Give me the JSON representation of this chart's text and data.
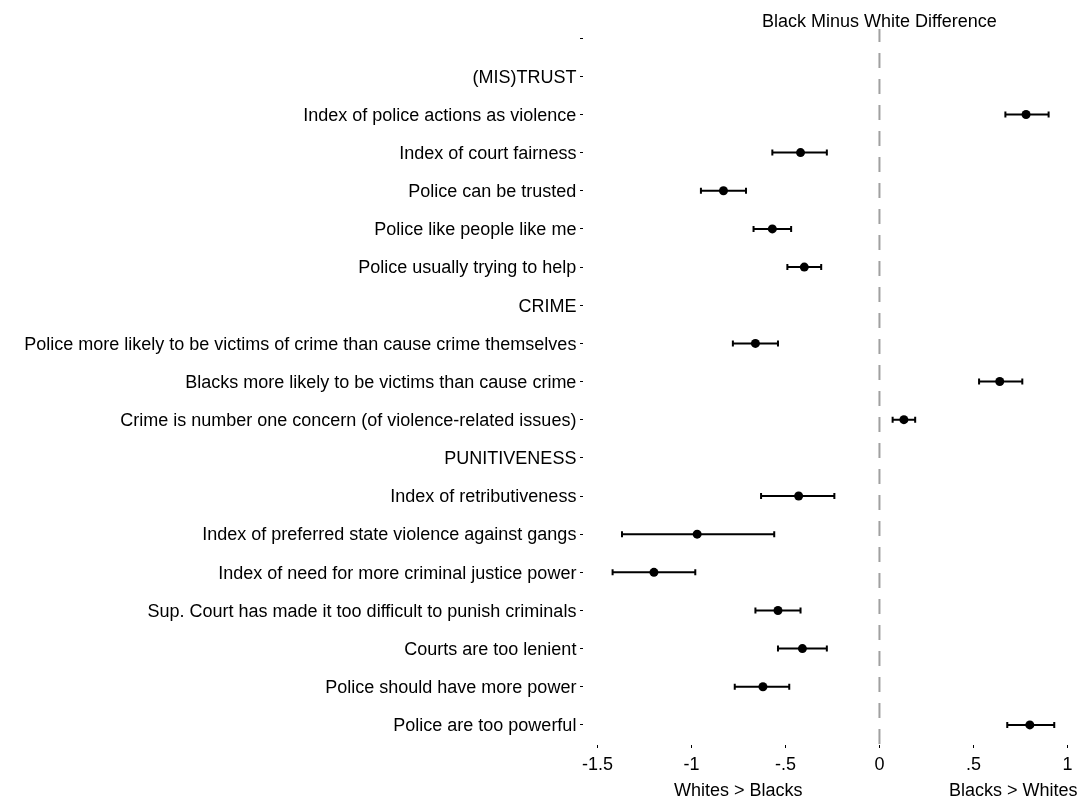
{
  "chart_data": {
    "type": "scatter",
    "orientation": "horizontal",
    "title": "Black Minus White Difference",
    "categories": [
      null,
      "(MIS)TRUST",
      "Index of police actions as violence",
      "Index of court fairness",
      "Police can be trusted",
      "Police like people like me",
      "Police usually trying to help",
      "CRIME",
      "Police more likely to be victims of crime than cause crime themselves",
      "Blacks more likely to be victims than cause crime",
      "Crime is number one concern (of violence-related issues)",
      "PUNITIVENESS",
      "Index of retributiveness",
      "Index of preferred state violence against gangs",
      "Index of need for more criminal justice power",
      "Sup. Court has made it too difficult to punish criminals",
      "Courts are too lenient",
      "Police should have more power",
      "Police are too powerful"
    ],
    "values": [
      null,
      null,
      0.78,
      -0.42,
      -0.83,
      -0.57,
      -0.4,
      null,
      -0.66,
      0.64,
      0.13,
      null,
      -0.43,
      -0.97,
      -1.2,
      -0.54,
      -0.41,
      -0.62,
      0.8
    ],
    "errors": [
      null,
      null,
      [
        0.67,
        0.9
      ],
      [
        -0.57,
        -0.28
      ],
      [
        -0.95,
        -0.71
      ],
      [
        -0.67,
        -0.47
      ],
      [
        -0.49,
        -0.31
      ],
      null,
      [
        -0.78,
        -0.54
      ],
      [
        0.53,
        0.76
      ],
      [
        0.07,
        0.19
      ],
      null,
      [
        -0.63,
        -0.24
      ],
      [
        -1.37,
        -0.56
      ],
      [
        -1.42,
        -0.98
      ],
      [
        -0.66,
        -0.42
      ],
      [
        -0.54,
        -0.28
      ],
      [
        -0.77,
        -0.48
      ],
      [
        0.68,
        0.93
      ]
    ],
    "color": "#000000",
    "marker": "circle",
    "grid": false,
    "xlim": [
      -1.5,
      1
    ],
    "xticks": [
      -1.5,
      -1,
      {
        "value": -0.5,
        "label": "-.5"
      },
      0,
      {
        "value": 0.5,
        "label": ".5"
      },
      1
    ],
    "ref_lines": [
      {
        "axis": "x",
        "value": 0,
        "color": "#a0a0a0",
        "line_style": "dashed"
      }
    ],
    "annotations": [
      "Whites > Blacks",
      "Blacks > Whites"
    ]
  }
}
